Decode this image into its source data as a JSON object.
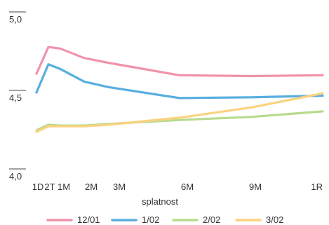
{
  "chart_data": {
    "type": "line",
    "xlabel": "splatnost",
    "ylabel": "",
    "ylim": [
      4.0,
      5.0
    ],
    "y_ticks": [
      "4,0",
      "4,5",
      "5,0"
    ],
    "y_tick_values": [
      4.0,
      4.5,
      5.0
    ],
    "x_tick_labels": [
      "1D",
      "2T",
      "1M",
      "2M",
      "3M",
      "6M",
      "9M",
      "1R"
    ],
    "x_tick_months": [
      0.033,
      0.5,
      1,
      2,
      3,
      6,
      9,
      12
    ],
    "xlim_months": [
      0,
      12
    ],
    "grid": false,
    "legend_position": "bottom",
    "series": [
      {
        "name": "12/01",
        "color": "#f093ab",
        "points": [
          [
            0,
            4.66
          ],
          [
            0.5,
            4.83
          ],
          [
            1,
            4.82
          ],
          [
            2,
            4.76
          ],
          [
            3,
            4.73
          ],
          [
            6,
            4.65
          ],
          [
            9,
            4.645
          ],
          [
            12,
            4.65
          ]
        ]
      },
      {
        "name": "1/02",
        "color": "#58aedf",
        "points": [
          [
            0,
            4.54
          ],
          [
            0.5,
            4.72
          ],
          [
            1,
            4.69
          ],
          [
            2,
            4.61
          ],
          [
            3,
            4.575
          ],
          [
            6,
            4.505
          ],
          [
            9,
            4.51
          ],
          [
            12,
            4.52
          ]
        ]
      },
      {
        "name": "2/02",
        "color": "#b7db8d",
        "points": [
          [
            0,
            4.3
          ],
          [
            0.5,
            4.335
          ],
          [
            1,
            4.33
          ],
          [
            2,
            4.33
          ],
          [
            3,
            4.34
          ],
          [
            6,
            4.365
          ],
          [
            9,
            4.385
          ],
          [
            12,
            4.42
          ]
        ]
      },
      {
        "name": "3/02",
        "color": "#fbd27f",
        "points": [
          [
            0,
            4.29
          ],
          [
            0.5,
            4.325
          ],
          [
            1,
            4.325
          ],
          [
            2,
            4.325
          ],
          [
            3,
            4.335
          ],
          [
            6,
            4.38
          ],
          [
            9,
            4.445
          ],
          [
            12,
            4.535
          ]
        ]
      }
    ]
  }
}
